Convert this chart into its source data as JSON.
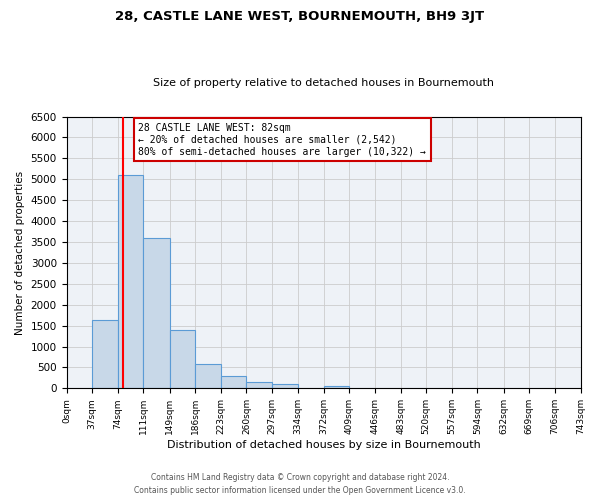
{
  "title": "28, CASTLE LANE WEST, BOURNEMOUTH, BH9 3JT",
  "subtitle": "Size of property relative to detached houses in Bournemouth",
  "xlabel": "Distribution of detached houses by size in Bournemouth",
  "ylabel": "Number of detached properties",
  "bin_edges": [
    0,
    37,
    74,
    111,
    149,
    186,
    223,
    260,
    297,
    334,
    372,
    409,
    446,
    483,
    520,
    557,
    594,
    632,
    669,
    706,
    743
  ],
  "bin_counts": [
    0,
    1630,
    5100,
    3600,
    1400,
    575,
    300,
    150,
    100,
    0,
    60,
    0,
    0,
    0,
    0,
    0,
    0,
    0,
    0,
    0
  ],
  "bar_color": "#c8d8e8",
  "bar_edge_color": "#5b9bd5",
  "grid_color": "#cccccc",
  "bg_color": "#eef2f7",
  "red_line_x": 82,
  "annotation_title": "28 CASTLE LANE WEST: 82sqm",
  "annotation_line1": "← 20% of detached houses are smaller (2,542)",
  "annotation_line2": "80% of semi-detached houses are larger (10,322) →",
  "annotation_box_color": "#ffffff",
  "annotation_box_edge_color": "#cc0000",
  "ylim": [
    0,
    6500
  ],
  "yticks": [
    0,
    500,
    1000,
    1500,
    2000,
    2500,
    3000,
    3500,
    4000,
    4500,
    5000,
    5500,
    6000,
    6500
  ],
  "tick_labels": [
    "0sqm",
    "37sqm",
    "74sqm",
    "111sqm",
    "149sqm",
    "186sqm",
    "223sqm",
    "260sqm",
    "297sqm",
    "334sqm",
    "372sqm",
    "409sqm",
    "446sqm",
    "483sqm",
    "520sqm",
    "557sqm",
    "594sqm",
    "632sqm",
    "669sqm",
    "706sqm",
    "743sqm"
  ],
  "footnote1": "Contains HM Land Registry data © Crown copyright and database right 2024.",
  "footnote2": "Contains public sector information licensed under the Open Government Licence v3.0."
}
